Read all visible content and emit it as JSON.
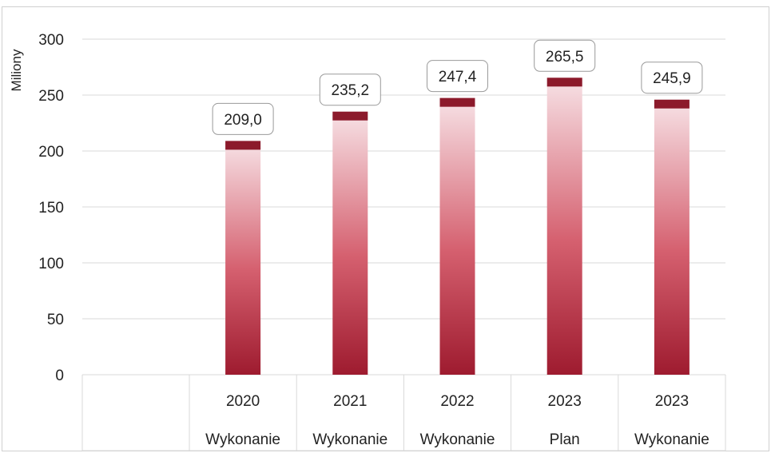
{
  "chart_data": {
    "type": "bar",
    "ylabel": "Miliony",
    "ylim": [
      0,
      300
    ],
    "yticks": [
      0,
      50,
      100,
      150,
      200,
      250,
      300
    ],
    "grid": true,
    "categories": [
      {
        "year": "2020",
        "kind": "Wykonanie"
      },
      {
        "year": "2021",
        "kind": "Wykonanie"
      },
      {
        "year": "2022",
        "kind": "Wykonanie"
      },
      {
        "year": "2023",
        "kind": "Plan"
      },
      {
        "year": "2023",
        "kind": "Wykonanie"
      }
    ],
    "values": [
      209.0,
      235.2,
      247.4,
      265.5,
      245.9
    ],
    "data_labels": [
      "209,0",
      "235,2",
      "247,4",
      "265,5",
      "245,9"
    ],
    "colors": {
      "bar_dark": "#9e1b2f",
      "bar_light": "#f7e2e6",
      "cap": "#8c1a2b",
      "grid": "#d9d9d9"
    }
  }
}
